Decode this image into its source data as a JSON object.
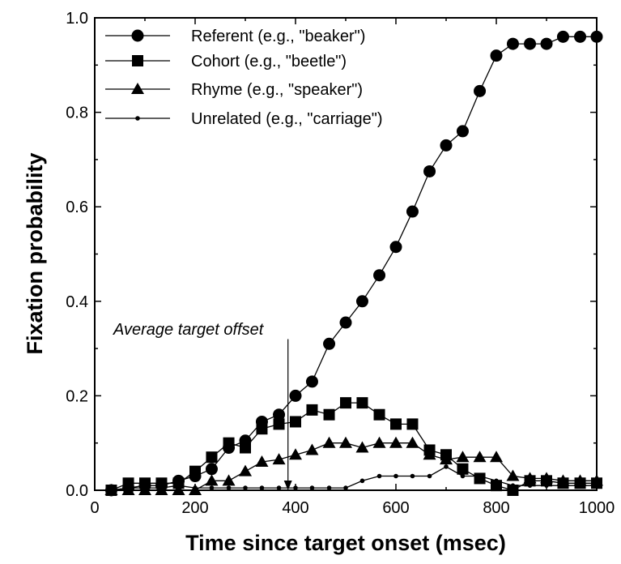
{
  "chart_data": {
    "type": "line",
    "title": "",
    "xlabel": "Time since target onset (msec)",
    "ylabel": "Fixation probability",
    "xlim": [
      0,
      1000
    ],
    "ylim": [
      0,
      1.0
    ],
    "x_ticks": [
      0,
      200,
      400,
      600,
      800,
      1000
    ],
    "y_ticks": [
      0.0,
      0.2,
      0.4,
      0.6,
      0.8,
      1.0
    ],
    "x_tick_labels": [
      "0",
      "200",
      "400",
      "600",
      "800",
      "1000"
    ],
    "y_tick_labels": [
      "0.0",
      "0.2",
      "0.4",
      "0.6",
      "0.8",
      "1.0"
    ],
    "grid": false,
    "legend_position": "top-left",
    "x": [
      33,
      67,
      100,
      133,
      167,
      200,
      233,
      267,
      300,
      333,
      367,
      400,
      433,
      467,
      500,
      533,
      567,
      600,
      633,
      667,
      700,
      733,
      767,
      800,
      833,
      867,
      900,
      933,
      967,
      1000
    ],
    "series": [
      {
        "name": "Referent (e.g., \"beaker\")",
        "marker": "circle",
        "values": [
          0.0,
          0.005,
          0.01,
          0.01,
          0.02,
          0.03,
          0.045,
          0.09,
          0.105,
          0.145,
          0.16,
          0.2,
          0.23,
          0.31,
          0.355,
          0.4,
          0.455,
          0.515,
          0.59,
          0.675,
          0.73,
          0.76,
          0.845,
          0.92,
          0.945,
          0.945,
          0.945,
          0.96,
          0.96,
          0.96
        ]
      },
      {
        "name": "Cohort (e.g., \"beetle\")",
        "marker": "square",
        "values": [
          0.0,
          0.015,
          0.015,
          0.015,
          0.015,
          0.04,
          0.07,
          0.1,
          0.09,
          0.13,
          0.14,
          0.145,
          0.17,
          0.16,
          0.185,
          0.185,
          0.16,
          0.14,
          0.14,
          0.085,
          0.075,
          0.045,
          0.025,
          0.01,
          0.0,
          0.02,
          0.02,
          0.015,
          0.015,
          0.015
        ]
      },
      {
        "name": "Rhyme (e.g., \"speaker\")",
        "marker": "triangle",
        "values": [
          0.0,
          0.0,
          0.0,
          0.0,
          0.0,
          0.0,
          0.02,
          0.02,
          0.04,
          0.06,
          0.065,
          0.075,
          0.085,
          0.1,
          0.1,
          0.09,
          0.1,
          0.1,
          0.1,
          0.075,
          0.065,
          0.07,
          0.07,
          0.07,
          0.03,
          0.025,
          0.025,
          0.02,
          0.02,
          0.02
        ]
      },
      {
        "name": "Unrelated (e.g., \"carriage\")",
        "marker": "dot",
        "values": [
          0.0,
          0.005,
          0.005,
          0.005,
          0.01,
          0.005,
          0.005,
          0.005,
          0.005,
          0.005,
          0.005,
          0.005,
          0.005,
          0.005,
          0.005,
          0.02,
          0.03,
          0.03,
          0.03,
          0.03,
          0.05,
          0.03,
          0.03,
          0.02,
          0.01,
          0.01,
          0.01,
          0.01,
          0.01,
          0.01
        ]
      }
    ],
    "annotations": [
      {
        "text": "Average target offset",
        "x": 385,
        "y_top": 0.32,
        "y_bottom": 0.0
      }
    ]
  }
}
